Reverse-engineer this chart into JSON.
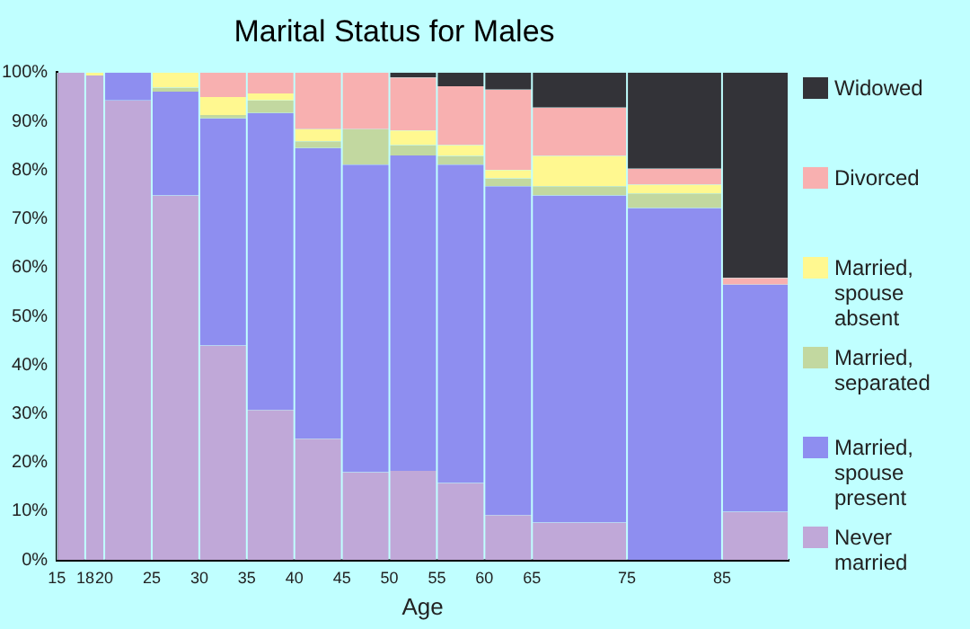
{
  "chart_data": {
    "type": "bar",
    "title": "Marital Status for Males",
    "xlabel": "Age",
    "stacked": true,
    "grid": false,
    "legend": "right",
    "x": [
      16.5,
      19,
      22.5,
      27.5,
      32.5,
      37.5,
      42.5,
      47.5,
      52.5,
      57.5,
      62.5,
      70,
      80,
      88.5
    ],
    "xlim": [
      15,
      92
    ],
    "xticks": [
      15,
      18,
      20,
      25,
      30,
      35,
      40,
      45,
      50,
      55,
      60,
      65,
      75,
      85
    ],
    "ylim": [
      0,
      100
    ],
    "yticks": [
      {
        "value": 0,
        "label": "0%"
      },
      {
        "value": 10,
        "label": "10%"
      },
      {
        "value": 20,
        "label": "20%"
      },
      {
        "value": 30,
        "label": "30%"
      },
      {
        "value": 40,
        "label": "40%"
      },
      {
        "value": 50,
        "label": "50%"
      },
      {
        "value": 60,
        "label": "60%"
      },
      {
        "value": 70,
        "label": "70%"
      },
      {
        "value": 80,
        "label": "80%"
      },
      {
        "value": 90,
        "label": "90%"
      },
      {
        "value": 100,
        "label": "100%"
      }
    ],
    "series": [
      {
        "name": "Never married",
        "color": "#c0a8d8",
        "values": [
          100,
          99.4,
          94.3,
          74.8,
          44.0,
          30.8,
          24.9,
          18.0,
          18.3,
          15.8,
          9.2,
          7.7,
          0,
          9.9
        ]
      },
      {
        "name": "Married, spouse present",
        "color": "#8e8ef0",
        "values": [
          0,
          0,
          5.7,
          21.3,
          46.6,
          60.9,
          59.6,
          63.1,
          64.7,
          65.3,
          67.5,
          67.1,
          72.2,
          46.6
        ]
      },
      {
        "name": "Married, separated",
        "color": "#c2d8a0",
        "values": [
          0,
          0,
          0,
          0.8,
          0.7,
          2.6,
          1.4,
          7.3,
          2.1,
          1.8,
          1.6,
          1.9,
          3.0,
          0
        ]
      },
      {
        "name": "Married, spouse absent",
        "color": "#fff890",
        "values": [
          0,
          0.6,
          0,
          3.1,
          3.7,
          1.4,
          2.5,
          0,
          3.0,
          2.2,
          1.7,
          6.2,
          1.8,
          0
        ]
      },
      {
        "name": "Divorced",
        "color": "#f8b0b0",
        "values": [
          0,
          0,
          0,
          0,
          5.0,
          4.3,
          11.6,
          11.6,
          10.9,
          12.1,
          16.5,
          9.9,
          3.3,
          1.4
        ]
      },
      {
        "name": "Widowed",
        "color": "#333338",
        "values": [
          0,
          0,
          0,
          0,
          0,
          0,
          0,
          0,
          1.0,
          2.8,
          3.5,
          7.2,
          19.7,
          42.1
        ]
      }
    ]
  }
}
